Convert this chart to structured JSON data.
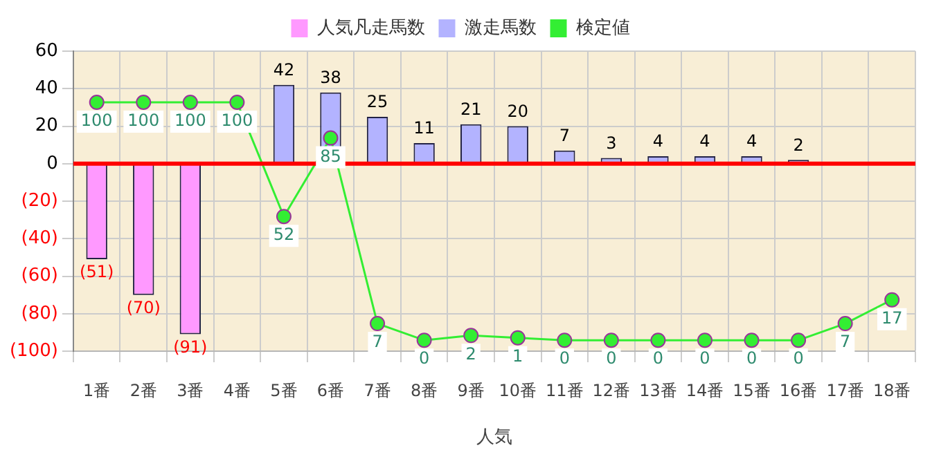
{
  "chart_data": {
    "type": "bar",
    "xlabel": "人気",
    "categories": [
      "1番",
      "2番",
      "3番",
      "4番",
      "5番",
      "6番",
      "7番",
      "8番",
      "9番",
      "10番",
      "11番",
      "12番",
      "13番",
      "14番",
      "15番",
      "16番",
      "17番",
      "18番"
    ],
    "series": [
      {
        "name": "人気凡走馬数",
        "color": "#ff99ff",
        "values": [
          -51,
          -70,
          -91,
          null,
          null,
          null,
          null,
          null,
          null,
          null,
          null,
          null,
          null,
          null,
          null,
          null,
          null,
          null
        ],
        "value_labels": [
          "(51)",
          "(70)",
          "(91)",
          null,
          null,
          null,
          null,
          null,
          null,
          null,
          null,
          null,
          null,
          null,
          null,
          null,
          null,
          null
        ]
      },
      {
        "name": "激走馬数",
        "color": "#b3b3ff",
        "values": [
          null,
          null,
          null,
          null,
          42,
          38,
          25,
          11,
          21,
          20,
          7,
          3,
          4,
          4,
          4,
          2,
          null,
          null
        ],
        "value_labels": [
          null,
          null,
          null,
          null,
          "42",
          "38",
          "25",
          "11",
          "21",
          "20",
          "7",
          "3",
          "4",
          "4",
          "4",
          "2",
          null,
          null
        ]
      },
      {
        "name": "検定値",
        "type": "line",
        "axis": "y2",
        "color": "#33ee33",
        "values": [
          100,
          100,
          100,
          100,
          52,
          85,
          7,
          0,
          2,
          1,
          0,
          0,
          0,
          0,
          0,
          0,
          7,
          17
        ],
        "value_labels": [
          "100",
          "100",
          "100",
          "100",
          "52",
          "85",
          "7",
          "0",
          "2",
          "1",
          "0",
          "0",
          "0",
          "0",
          "0",
          "0",
          "7",
          "17"
        ]
      }
    ],
    "ylim": [
      -100,
      60
    ],
    "yticks": [
      {
        "value": -100,
        "label": "(100)"
      },
      {
        "value": -80,
        "label": "(80)"
      },
      {
        "value": -60,
        "label": "(60)"
      },
      {
        "value": -40,
        "label": "(40)"
      },
      {
        "value": -20,
        "label": "(20)"
      },
      0,
      20,
      40,
      60
    ],
    "y2lim": [
      -4.6,
      121.5
    ],
    "ref_lines": [
      {
        "axis": "y",
        "value": 0,
        "color": "#ff0000"
      }
    ],
    "grid": true,
    "legend": "top",
    "marker": "circle",
    "line_style": "solid"
  }
}
